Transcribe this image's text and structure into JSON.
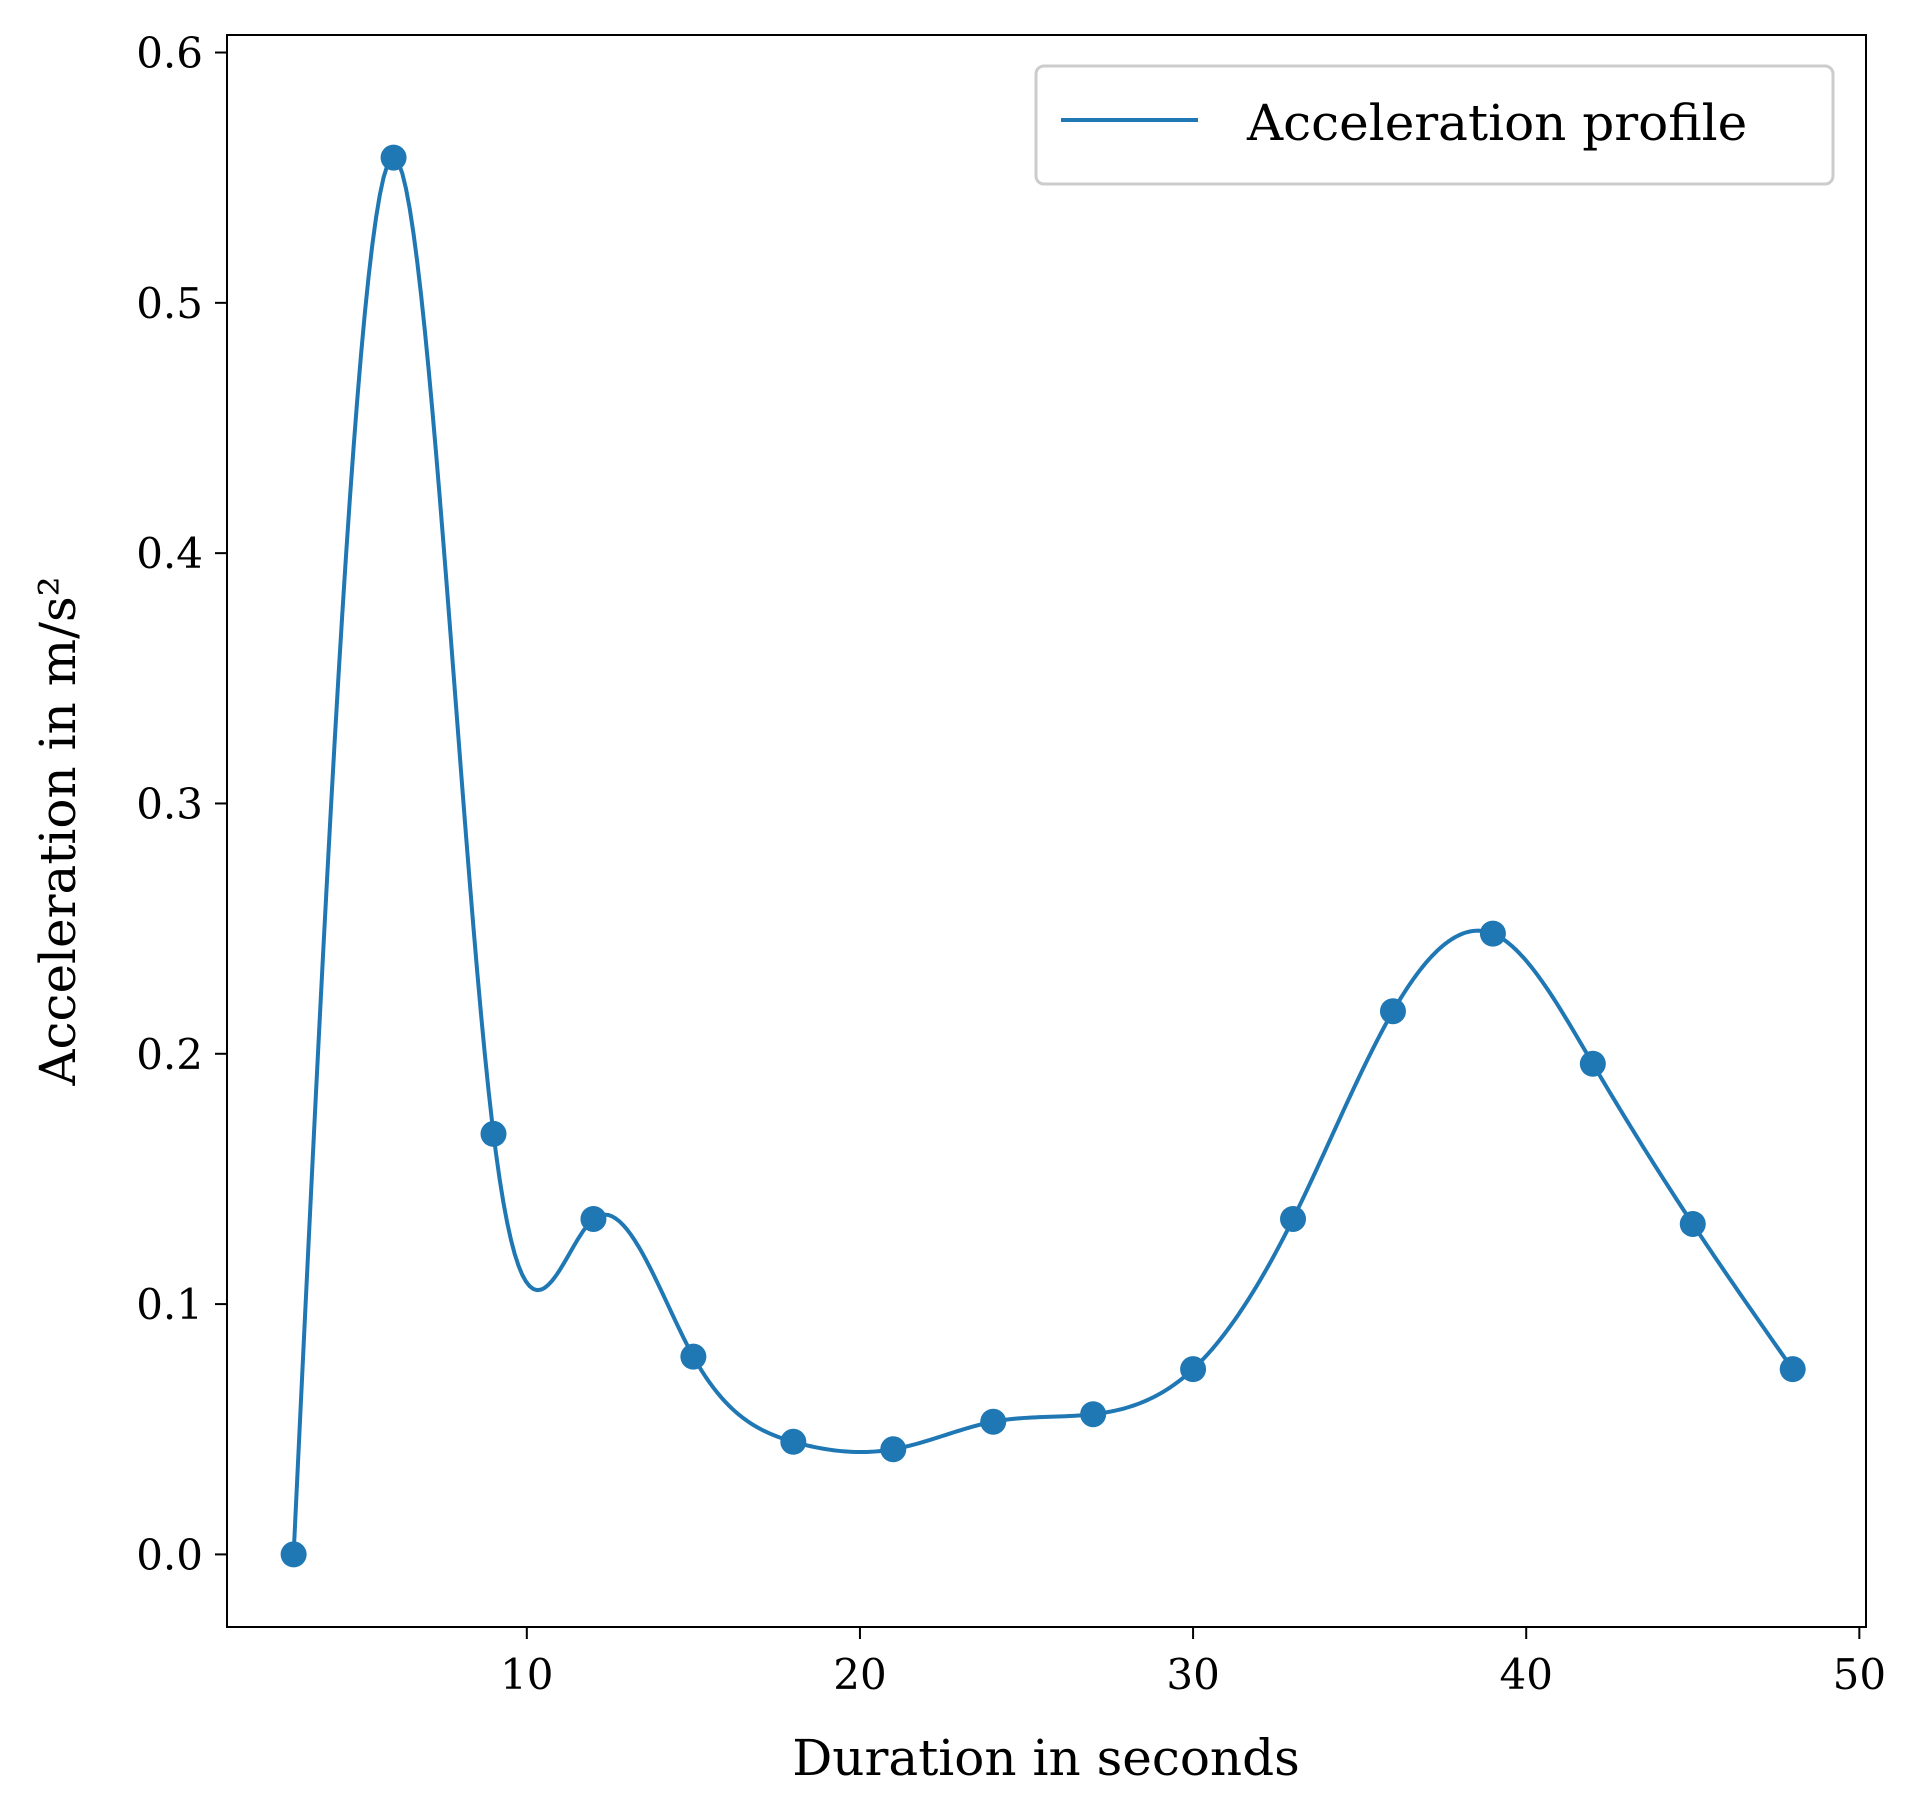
{
  "chart_data": {
    "type": "line",
    "title": "",
    "xlabel": "Duration in seconds",
    "ylabel": "Acceleration in m/s²",
    "xlim": [
      1,
      50.2
    ],
    "ylim": [
      -0.029,
      0.607
    ],
    "xticks": [
      10,
      20,
      30,
      40,
      50
    ],
    "xtick_labels": [
      "10",
      "20",
      "30",
      "40",
      "50"
    ],
    "yticks": [
      0.0,
      0.1,
      0.2,
      0.3,
      0.4,
      0.5,
      0.6
    ],
    "ytick_labels": [
      "0.0",
      "0.1",
      "0.2",
      "0.3",
      "0.4",
      "0.5",
      "0.6"
    ],
    "grid": false,
    "legend_position": "top-right",
    "series": [
      {
        "name": "Acceleration profile",
        "color": "#1f77b4",
        "x": [
          3,
          6,
          9,
          12,
          15,
          18,
          21,
          24,
          27,
          30,
          33,
          36,
          39,
          42,
          45,
          48
        ],
        "y": [
          0.0,
          0.558,
          0.168,
          0.134,
          0.079,
          0.045,
          0.042,
          0.053,
          0.056,
          0.074,
          0.134,
          0.217,
          0.248,
          0.196,
          0.132,
          0.074
        ]
      }
    ],
    "curve_style": "smooth interpolating spline through markers"
  }
}
